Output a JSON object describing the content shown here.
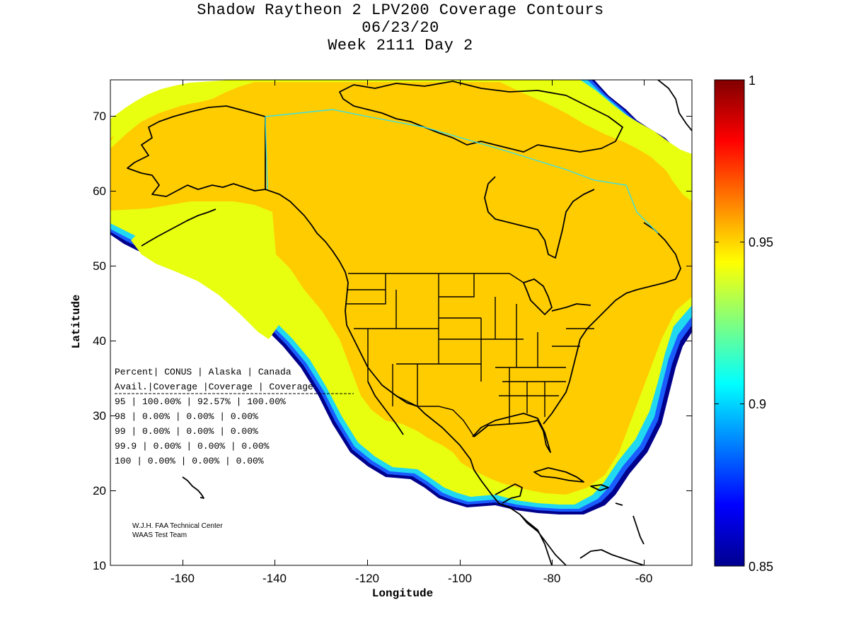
{
  "title": {
    "line1": "Shadow Raytheon 2 LPV200 Coverage Contours",
    "line2": "06/23/20",
    "line3": "Week 2111 Day 2"
  },
  "axes": {
    "xlabel": "Longitude",
    "ylabel": "Latitude",
    "x_range": [
      -175,
      -50
    ],
    "y_range": [
      10,
      75
    ],
    "x_ticks": [
      "-160",
      "-140",
      "-120",
      "-100",
      "-80",
      "-60"
    ],
    "y_ticks": [
      "10",
      "20",
      "30",
      "40",
      "50",
      "60",
      "70"
    ]
  },
  "colorbar": {
    "range": [
      0.85,
      1
    ],
    "ticks": [
      "0.85",
      "0.9",
      "0.95",
      "1"
    ],
    "colormap": "jet"
  },
  "coverage_table": {
    "header1": "Percent| CONUS   | Alaska  | Canada",
    "header2": " Avail.|Coverage |Coverage | Coverage",
    "rows": [
      "  95   | 100.00%  | 92.57% | 100.00%",
      "  98   | 0.00%  | 0.00% | 0.00%",
      "  99   | 0.00%  | 0.00% | 0.00%",
      "99.9   | 0.00%  | 0.00% | 0.00%",
      " 100   | 0.00%  | 0.00% | 0.00%"
    ]
  },
  "credit": {
    "line1": "W.J.H. FAA Technical Center",
    "line2": "WAAS Test Team"
  },
  "colors": {
    "coverage_main": "#ffcc00",
    "coverage_95": "#e8ff10",
    "edge_cyan": "#20e0e8",
    "edge_blue": "#1040ff",
    "edge_dark": "#00008c"
  }
}
